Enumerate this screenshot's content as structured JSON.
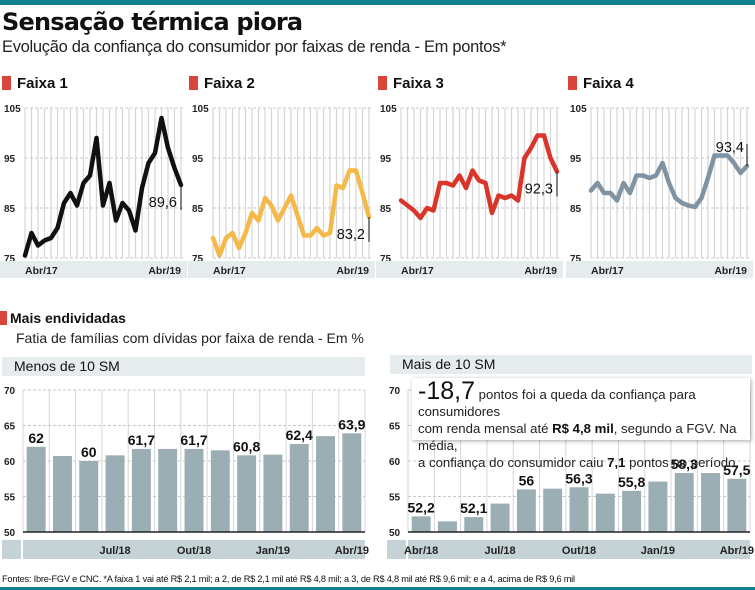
{
  "header": {
    "title": "Sensação térmica piora",
    "subtitle": "Evolução da confiança do consumidor por faixas de renda - Em pontos*"
  },
  "section2": {
    "title": "Mais endividadas",
    "subtitle": "Fatia de famílias com dívidas por faixa de renda - Em %"
  },
  "note": {
    "big": "-18,7",
    "line1_rest": " pontos foi a queda da confiança para consumidores",
    "line2_a": "com renda mensal até ",
    "line2_b": "R$ 4,8 mil",
    "line2_c": ", segundo a FGV. Na média,",
    "line3_a": "a confiança do consumidor caiu ",
    "line3_b": "7,1",
    "line3_c": " pontos no período"
  },
  "footer": "Fontes: Ibre-FGV e CNC. *A faixa 1 vai até R$ 2,1 mil; a 2, de R$ 2,1 mil até R$ 4,8 mil; a 3, de R$ 4,8 mil até R$ 9,6 mil; e a 4, acima de R$ 9,6 mil",
  "colors": {
    "accent_bar": "#13808f",
    "marker_red": "#d9453a",
    "bar_gray": "#9aaeb3",
    "band_bg": "#e6ecee"
  },
  "chart_data": [
    {
      "type": "line",
      "title": "Faixa 1",
      "color": "#111111",
      "ylim": [
        75,
        105
      ],
      "yticks": [
        "75",
        "85",
        "95",
        "105"
      ],
      "xtick_labels": [
        "Abr/17",
        "Abr/19"
      ],
      "x_range": [
        "Abr/17",
        "Abr/19"
      ],
      "values": [
        75.5,
        80,
        77.5,
        78.5,
        79,
        81,
        86,
        88,
        85.5,
        90,
        91.5,
        99,
        85.5,
        90,
        82.5,
        86,
        84.5,
        80.5,
        89,
        94,
        96,
        103,
        97,
        93,
        89.6
      ],
      "last_label": "89,6",
      "grid": true
    },
    {
      "type": "line",
      "title": "Faixa 2",
      "color": "#f5b94a",
      "ylim": [
        75,
        105
      ],
      "yticks": [
        "75",
        "85",
        "95",
        "105"
      ],
      "xtick_labels": [
        "Abr/17",
        "Abr/19"
      ],
      "x_range": [
        "Abr/17",
        "Abr/19"
      ],
      "values": [
        79,
        75.5,
        79,
        80,
        77,
        80,
        84,
        82.5,
        87,
        85.5,
        82.5,
        85,
        87.5,
        83.5,
        79.5,
        79.5,
        81,
        79.5,
        80,
        89.5,
        89,
        92.5,
        92.5,
        88,
        83.2
      ],
      "last_label": "83,2",
      "grid": true
    },
    {
      "type": "line",
      "title": "Faixa 3",
      "color": "#d9352a",
      "ylim": [
        75,
        105
      ],
      "yticks": [
        "75",
        "85",
        "95",
        "105"
      ],
      "xtick_labels": [
        "Abr/17",
        "Abr/19"
      ],
      "x_range": [
        "Abr/17",
        "Abr/19"
      ],
      "values": [
        86.5,
        85.5,
        84.5,
        83,
        85,
        84.5,
        90,
        90,
        89.5,
        91.5,
        89,
        92.5,
        90.5,
        90,
        84,
        87.5,
        87,
        87.5,
        86.5,
        95,
        97,
        99.5,
        99.5,
        95,
        92.3
      ],
      "last_label": "92,3",
      "grid": true
    },
    {
      "type": "line",
      "title": "Faixa 4",
      "color": "#7f93a3",
      "ylim": [
        75,
        105
      ],
      "yticks": [
        "75",
        "85",
        "95",
        "105"
      ],
      "xtick_labels": [
        "Abr/17",
        "Abr/19"
      ],
      "x_range": [
        "Abr/17",
        "Abr/19"
      ],
      "values": [
        88.5,
        90,
        88,
        88,
        86.5,
        90,
        88,
        91.5,
        91.5,
        91,
        91.5,
        94,
        90,
        87,
        86,
        85.5,
        85.2,
        87,
        91,
        95.5,
        95.5,
        95.5,
        94,
        92,
        93.4
      ],
      "last_label": "93,4",
      "grid": true
    },
    {
      "type": "bar",
      "title": "Menos de 10 SM",
      "ylim": [
        50,
        70
      ],
      "yticks": [
        "50",
        "55",
        "60",
        "65",
        "70"
      ],
      "categories": [
        "Abr/18",
        "Mai/18",
        "Jun/18",
        "Jul/18",
        "Ago/18",
        "Set/18",
        "Out/18",
        "Nov/18",
        "Dez/18",
        "Jan/19",
        "Fev/19",
        "Mar/19",
        "Abr/19"
      ],
      "xtick_labels": [
        "",
        "",
        "",
        "Jul/18",
        "",
        "",
        "Out/18",
        "",
        "",
        "Jan/19",
        "",
        "",
        "Abr/19"
      ],
      "values": [
        62,
        60.7,
        60,
        60.8,
        61.7,
        61.7,
        61.7,
        61.5,
        60.8,
        60.9,
        62.4,
        63.5,
        63.9
      ],
      "data_labels": [
        "62",
        "",
        "60",
        "",
        "61,7",
        "",
        "61,7",
        "",
        "60,8",
        "",
        "62,4",
        "",
        "63,9"
      ],
      "grid": true
    },
    {
      "type": "bar",
      "title": "Mais de 10 SM",
      "ylim": [
        50,
        70
      ],
      "yticks": [
        "50",
        "55",
        "60",
        "65",
        "70"
      ],
      "categories": [
        "Abr/18",
        "Mai/18",
        "Jun/18",
        "Jul/18",
        "Ago/18",
        "Set/18",
        "Out/18",
        "Nov/18",
        "Dez/18",
        "Jan/19",
        "Fev/19",
        "Mar/19",
        "Abr/19"
      ],
      "xtick_labels": [
        "Abr/18",
        "",
        "",
        "Jul/18",
        "",
        "",
        "Out/18",
        "",
        "",
        "Jan/19",
        "",
        "",
        "Abr/19"
      ],
      "values": [
        52.2,
        51.5,
        52.1,
        54,
        56,
        56.1,
        56.3,
        55.4,
        55.8,
        57.1,
        58.3,
        58.3,
        57.5
      ],
      "data_labels": [
        "52,2",
        "",
        "52,1",
        "",
        "56",
        "",
        "56,3",
        "",
        "55,8",
        "",
        "58,3",
        "",
        "57,5"
      ],
      "grid": true
    }
  ]
}
